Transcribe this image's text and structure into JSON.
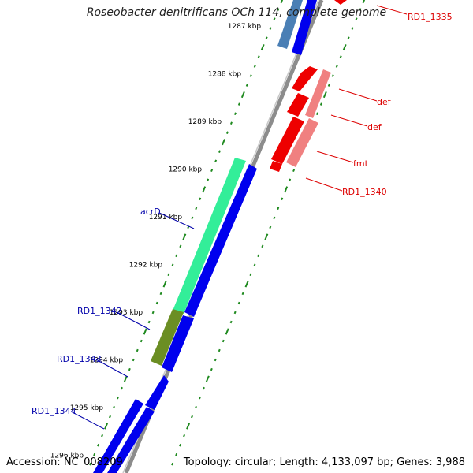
{
  "title": "Roseobacter denitrificans OCh 114, complete genome",
  "footer": {
    "accession": "Accession: NC_008209",
    "summary": "Topology: circular; Length: 4,133,097 bp; Genes: 3,988"
  },
  "scale": [
    {
      "label": "1287 kbp"
    },
    {
      "label": "1288 kbp"
    },
    {
      "label": "1289 kbp"
    },
    {
      "label": "1290 kbp"
    },
    {
      "label": "1291 kbp"
    },
    {
      "label": "1292 kbp"
    },
    {
      "label": "1293 kbp"
    },
    {
      "label": "1294 kbp"
    },
    {
      "label": "1295 kbp"
    },
    {
      "label": "1296 kbp"
    }
  ],
  "gene_labels": {
    "rd1_1335": "RD1_1335",
    "def_a": "def",
    "def_b": "def",
    "fmt": "fmt",
    "rd1_1340": "RD1_1340",
    "acrD": "acrD",
    "rd1_1342": "RD1_1342",
    "rd1_1343": "RD1_1343",
    "rd1_1344": "RD1_1344"
  },
  "colors": {
    "backbone": "#8c8c8c",
    "tick": "#1f8a1f",
    "forward_cds": "#0000ee",
    "reverse_cds": "#ee0000",
    "reverse_light": "#f08080",
    "acrD": "#33ee99",
    "olive": "#6b8e23",
    "steel": "#4a7fb5",
    "forward_label": "#0000aa",
    "reverse_label": "#dd0000"
  }
}
